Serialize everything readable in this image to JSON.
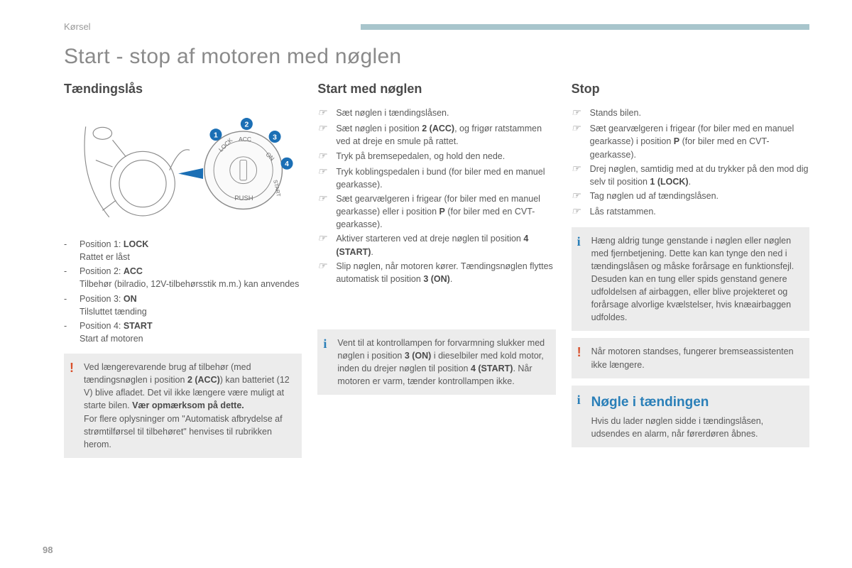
{
  "header": {
    "section": "Kørsel",
    "bar_color": "#a8c5cc",
    "page_number": "98"
  },
  "title": "Start - stop af motoren med nøglen",
  "colors": {
    "text": "#5a5a5a",
    "heading": "#4a4a4a",
    "note_bg": "#ececec",
    "warn": "#d94f2a",
    "info": "#2a7fb8",
    "diagram_blue": "#1b6fb5",
    "diagram_line": "#8a8a8a"
  },
  "diagram": {
    "labels": [
      "LOCK",
      "ACC",
      "ON",
      "START",
      "PUSH"
    ],
    "callouts": [
      "1",
      "2",
      "3",
      "4"
    ]
  },
  "col1": {
    "heading": "Tændingslås",
    "positions": [
      {
        "label": "Position 1: <b>LOCK</b>",
        "desc": "Rattet er låst"
      },
      {
        "label": "Position 2: <b>ACC</b>",
        "desc": "Tilbehør (bilradio, 12V-tilbehørsstik m.m.) kan anvendes"
      },
      {
        "label": "Position 3: <b>ON</b>",
        "desc": "Tilsluttet tænding"
      },
      {
        "label": "Position 4: <b>START</b>",
        "desc": "Start af motoren"
      }
    ],
    "warn": "Ved længerevarende brug af tilbehør (med tændingsnøglen i position <b>2 (ACC)</b>) kan batteriet (12 V) blive afladet. Det vil ikke længere være muligt at starte bilen. <b>Vær opmærksom på dette.</b><br>For flere oplysninger om \"Automatisk afbrydelse af strømtilførsel til tilbehøret\" henvises til rubrikken herom."
  },
  "col2": {
    "heading": "Start med nøglen",
    "steps": [
      "Sæt nøglen i tændingslåsen.",
      "Sæt nøglen i position <b>2 (ACC)</b>, og frigør ratstammen ved at dreje en smule på rattet.",
      "Tryk på bremsepedalen, og hold den nede.",
      "Tryk koblingspedalen i bund (for biler med en manuel gearkasse).",
      "Sæt gearvælgeren i frigear (for biler med en manuel gearkasse) eller i position <b>P</b> (for biler med en CVT-gearkasse).",
      "Aktiver starteren ved at dreje nøglen til position <b>4 (START)</b>.",
      "Slip nøglen, når motoren kører. Tændingsnøglen flyttes automatisk til position <b>3 (ON)</b>."
    ],
    "info": "Vent til at kontrollampen for forvarmning slukker med nøglen i position <b>3 (ON)</b> i dieselbiler med kold motor, inden du drejer nøglen til position <b>4 (START)</b>. Når motoren er varm, tænder kontrollampen ikke."
  },
  "col3": {
    "heading": "Stop",
    "steps": [
      "Stands bilen.",
      "Sæt gearvælgeren i frigear (for biler med en manuel gearkasse) i position <b>P</b> (for biler med en CVT-gearkasse).",
      "Drej nøglen, samtidig med at du trykker på den mod dig selv til position <b>1 (LOCK)</b>.",
      "Tag nøglen ud af tændingslåsen.",
      "Lås ratstammen."
    ],
    "info1": "Hæng aldrig tunge genstande i nøglen eller nøglen med fjernbetjening. Dette kan kan tynge den ned i tændingslåsen og måske forårsage en funktionsfejl. Desuden kan en tung eller spids genstand genere udfoldelsen af airbaggen, eller blive projekteret og forårsage alvorlige kvælstelser, hvis knæairbaggen udfoldes.",
    "warn": "Når motoren standses, fungerer bremseassistenten ikke længere.",
    "info2_title": "Nøgle i tændingen",
    "info2": "Hvis du lader nøglen sidde i tændingslåsen, udsendes en alarm, når førerdøren åbnes."
  }
}
